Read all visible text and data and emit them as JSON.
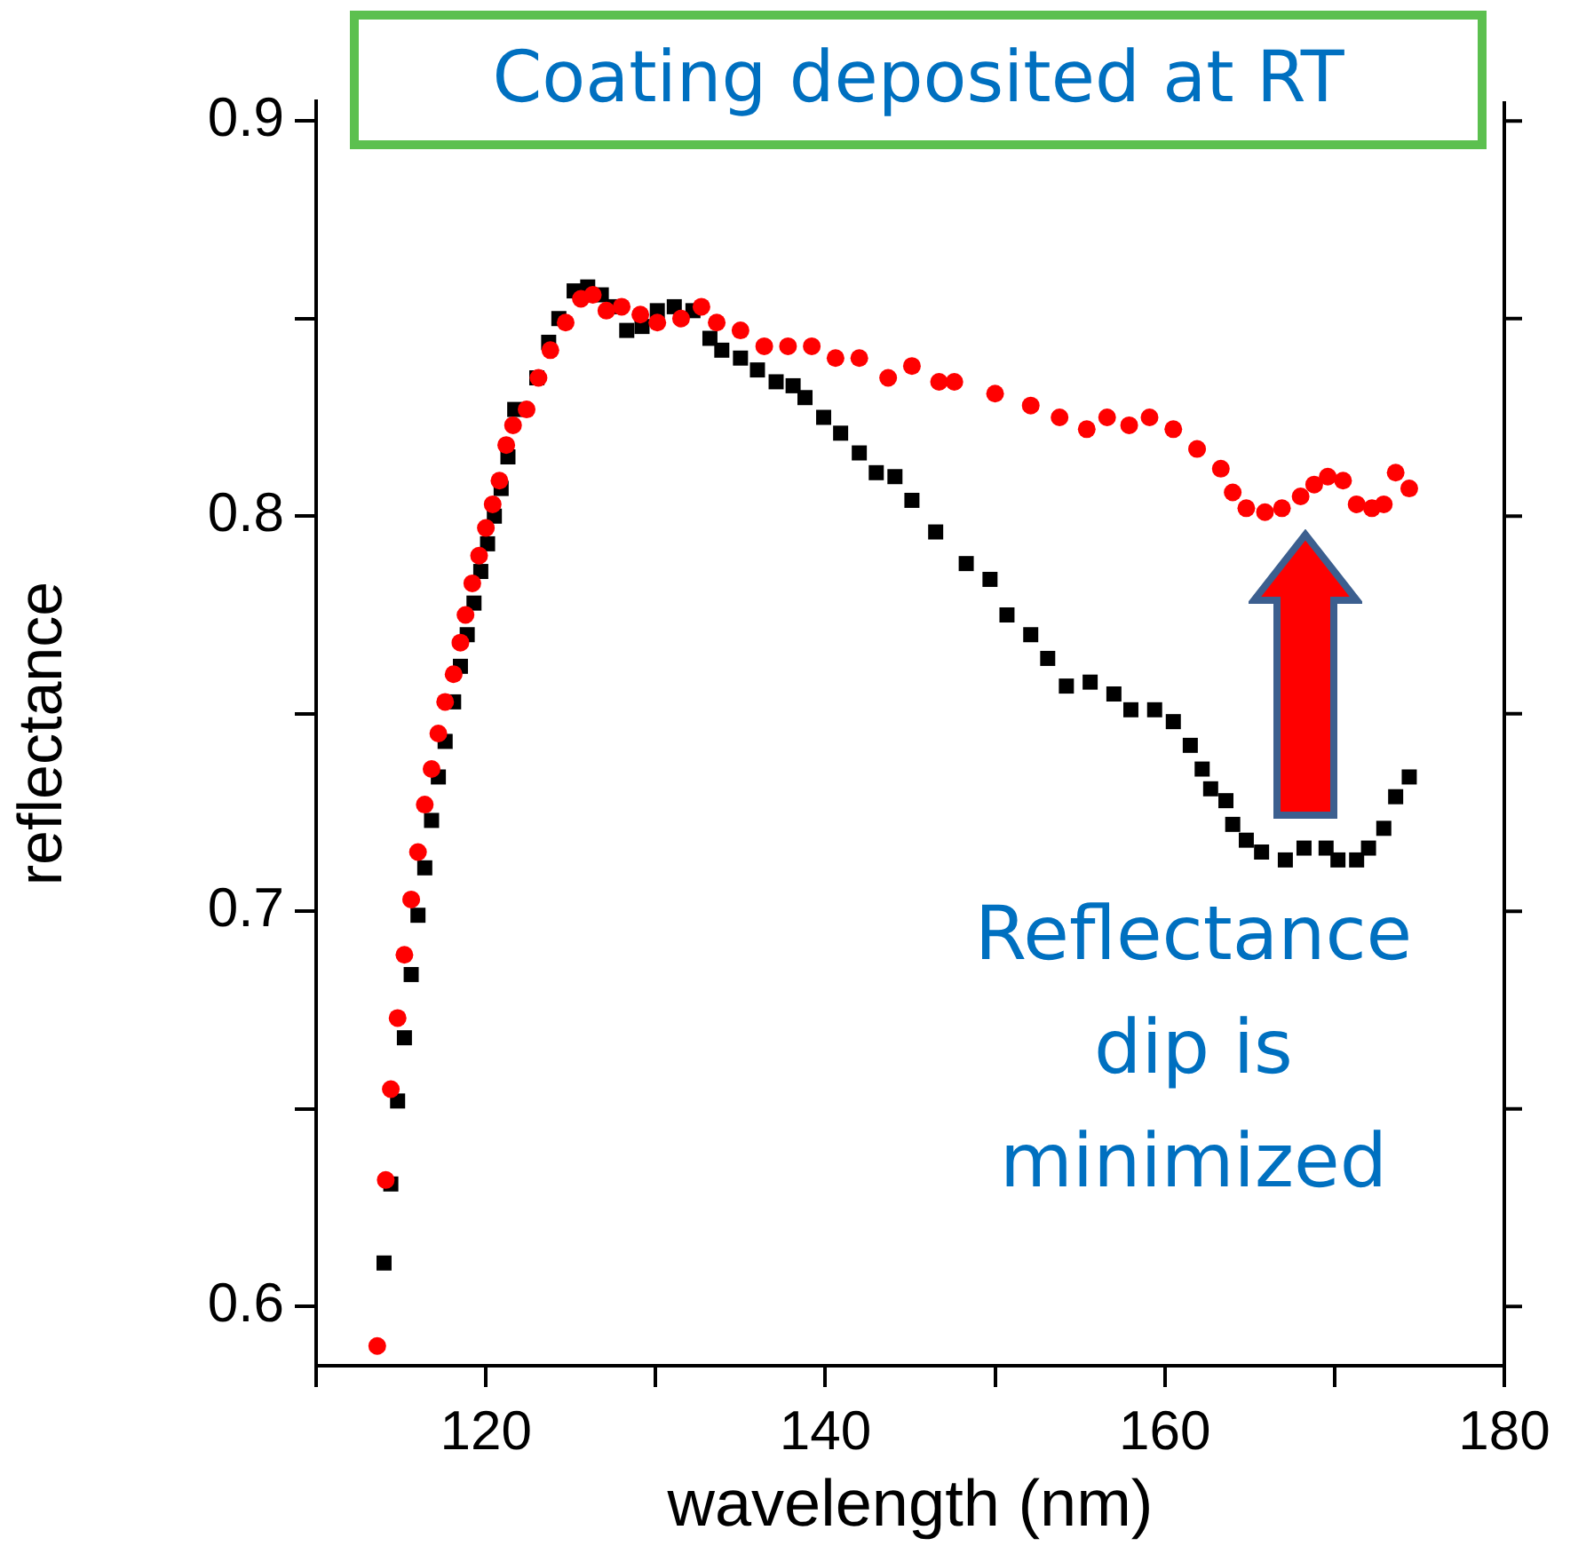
{
  "chart_data": {
    "type": "scatter",
    "xlabel": "wavelength (nm)",
    "ylabel": "reflectance",
    "xlim": [
      110,
      180
    ],
    "xticks": [
      {
        "value": 110,
        "label": null
      },
      120,
      {
        "value": 130,
        "label": null
      },
      140,
      {
        "value": 150,
        "label": null
      },
      160,
      {
        "value": 170,
        "label": null
      },
      180
    ],
    "ylim": [
      0.585,
      0.905
    ],
    "yticks": [
      0.6,
      {
        "value": 0.65,
        "label": null
      },
      0.7,
      {
        "value": 0.75,
        "label": null
      },
      0.8,
      {
        "value": 0.85,
        "label": null
      },
      0.9
    ],
    "grid": false,
    "legend": false,
    "annotations": [
      "Coating deposited at RT",
      "Reflectance dip is minimized"
    ],
    "series": [
      {
        "color": "#000000",
        "marker": "square",
        "x": [
          114.0,
          114.4,
          114.8,
          115.2,
          115.6,
          116.0,
          116.4,
          116.8,
          117.2,
          117.6,
          118.1,
          118.5,
          118.9,
          119.3,
          119.7,
          120.1,
          120.5,
          120.9,
          121.3,
          121.7,
          123.0,
          123.7,
          124.3,
          125.2,
          126.0,
          126.8,
          127.6,
          128.3,
          129.2,
          130.1,
          131.1,
          132.2,
          133.2,
          133.9,
          135.0,
          136.0,
          137.1,
          138.1,
          138.8,
          139.9,
          140.9,
          142.0,
          143.0,
          144.1,
          145.1,
          146.5,
          148.3,
          149.7,
          150.7,
          152.1,
          153.1,
          154.2,
          155.6,
          157.0,
          158.0,
          159.4,
          160.5,
          161.5,
          162.2,
          162.7,
          163.6,
          164.0,
          164.8,
          165.7,
          167.1,
          168.2,
          169.5,
          170.2,
          171.3,
          172.0,
          172.9,
          173.6,
          174.4
        ],
        "values": [
          0.611,
          0.631,
          0.652,
          0.668,
          0.684,
          0.699,
          0.711,
          0.723,
          0.734,
          0.743,
          0.753,
          0.762,
          0.77,
          0.778,
          0.786,
          0.793,
          0.8,
          0.807,
          0.815,
          0.827,
          0.835,
          0.844,
          0.85,
          0.857,
          0.858,
          0.856,
          0.853,
          0.847,
          0.848,
          0.852,
          0.853,
          0.852,
          0.845,
          0.842,
          0.84,
          0.837,
          0.834,
          0.833,
          0.83,
          0.825,
          0.821,
          0.816,
          0.811,
          0.81,
          0.804,
          0.796,
          0.788,
          0.784,
          0.775,
          0.77,
          0.764,
          0.757,
          0.758,
          0.755,
          0.751,
          0.751,
          0.748,
          0.742,
          0.736,
          0.731,
          0.728,
          0.722,
          0.718,
          0.715,
          0.713,
          0.716,
          0.716,
          0.713,
          0.713,
          0.716,
          0.721,
          0.729,
          0.734
        ]
      },
      {
        "color": "#ff0000",
        "marker": "circle",
        "x": [
          113.6,
          114.1,
          114.4,
          114.8,
          115.2,
          115.6,
          116.0,
          116.4,
          116.8,
          117.2,
          117.6,
          118.1,
          118.5,
          118.8,
          119.2,
          119.6,
          120.0,
          120.4,
          120.8,
          121.2,
          121.6,
          122.4,
          123.1,
          123.8,
          124.7,
          125.6,
          126.3,
          127.1,
          128.0,
          129.1,
          130.1,
          131.5,
          132.7,
          133.6,
          135.0,
          136.4,
          137.8,
          139.2,
          140.6,
          142.0,
          143.7,
          145.1,
          146.7,
          147.6,
          150.0,
          152.1,
          153.8,
          155.4,
          156.6,
          157.9,
          159.1,
          160.5,
          161.9,
          163.3,
          164.0,
          164.8,
          165.9,
          166.9,
          168.0,
          168.8,
          169.6,
          170.5,
          171.3,
          172.2,
          172.9,
          173.6,
          174.4
        ],
        "values": [
          0.59,
          0.632,
          0.655,
          0.673,
          0.689,
          0.703,
          0.715,
          0.727,
          0.736,
          0.745,
          0.753,
          0.76,
          0.768,
          0.775,
          0.783,
          0.79,
          0.797,
          0.803,
          0.809,
          0.818,
          0.823,
          0.827,
          0.835,
          0.842,
          0.849,
          0.855,
          0.856,
          0.852,
          0.853,
          0.851,
          0.849,
          0.85,
          0.853,
          0.849,
          0.847,
          0.843,
          0.843,
          0.843,
          0.84,
          0.84,
          0.835,
          0.838,
          0.834,
          0.834,
          0.831,
          0.828,
          0.825,
          0.822,
          0.825,
          0.823,
          0.825,
          0.822,
          0.817,
          0.812,
          0.806,
          0.802,
          0.801,
          0.802,
          0.805,
          0.808,
          0.81,
          0.809,
          0.803,
          0.802,
          0.803,
          0.811,
          0.807
        ]
      }
    ]
  }
}
